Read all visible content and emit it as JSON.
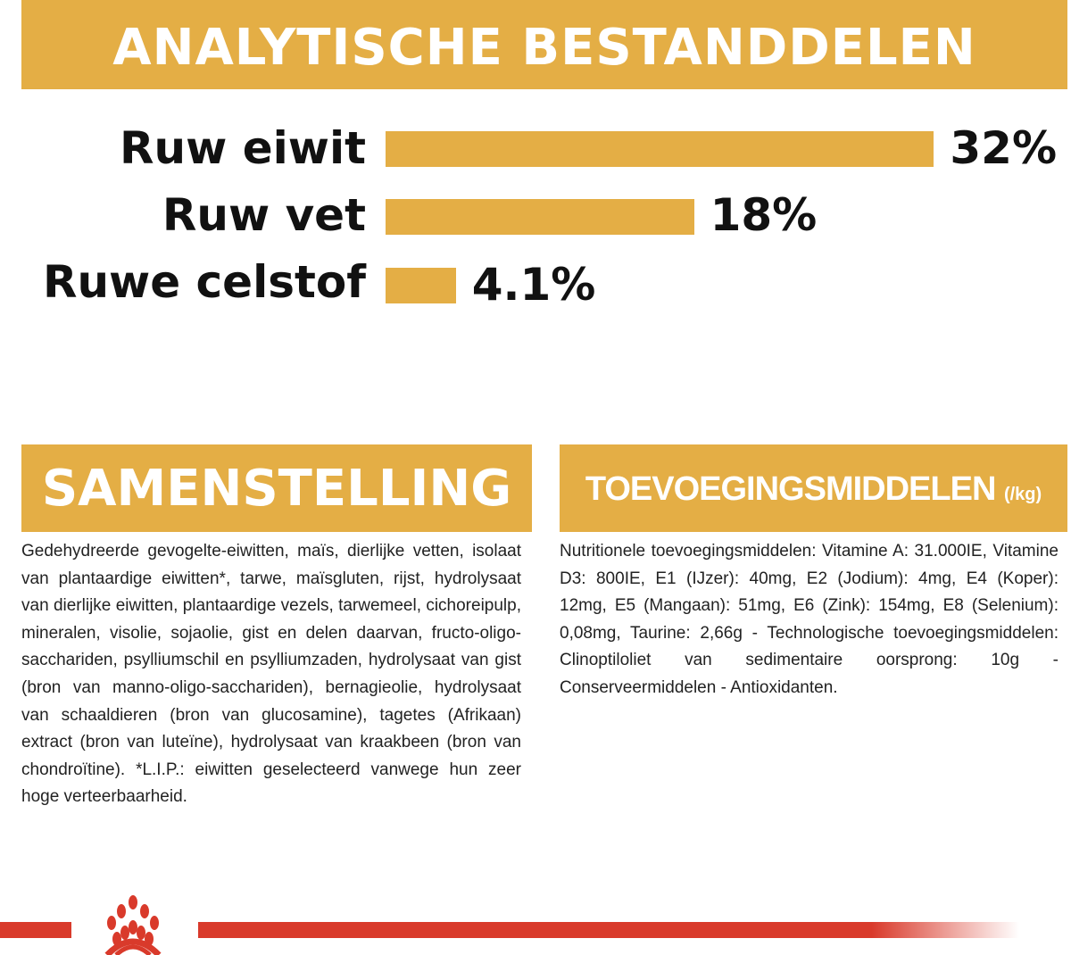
{
  "analytics": {
    "title": "ANALYTISCHE BESTANDDELEN",
    "items": [
      {
        "label": "Ruw eiwit",
        "value_text": "32%",
        "value": 32
      },
      {
        "label": "Ruw vet",
        "value_text": "18%",
        "value": 18
      },
      {
        "label": "Ruwe celstof",
        "value_text": "4.1%",
        "value": 4.1
      }
    ]
  },
  "composition": {
    "title": "SAMENSTELLING",
    "text": "Gedehydreerde gevogelte-eiwitten, maïs, dierlijke vetten, isolaat van plantaardige eiwitten*, tarwe, maïsgluten, rijst, hydrolysaat van dierlijke eiwitten, plantaardige vezels, tarwemeel, cichoreipulp, mineralen, visolie, sojaolie, gist en delen daarvan, fructo-oligo-sacchariden, psylliumschil en psylliumzaden, hydrolysaat van gist (bron van manno-oligo-sacchariden), bernagieolie, hydrolysaat van schaaldieren (bron van glucosamine), tagetes (Afrikaan) extract (bron van luteïne), hydrolysaat van kraakbeen (bron van chondroïtine). *L.I.P.: eiwitten geselecteerd vanwege hun zeer hoge verteerbaarheid."
  },
  "additives": {
    "title": "TOEVOEGINGSMIDDELEN",
    "unit": "(/kg)",
    "text": "Nutritionele toevoegingsmiddelen: Vitamine A: 31.000IE, Vitamine D3: 800IE, E1 (IJzer): 40mg, E2 (Jodium): 4mg, E4 (Koper): 12mg, E5 (Mangaan): 51mg, E6 (Zink): 154mg, E8 (Selenium): 0,08mg, Taurine: 2,66g - Technologische toevoegingsmiddelen: Clinoptiloliet van sedimentaire oorsprong: 10g - Conserveermiddelen - Antioxidanten."
  },
  "colors": {
    "accent": "#e4ae45",
    "brand_red": "#d93a2b"
  }
}
